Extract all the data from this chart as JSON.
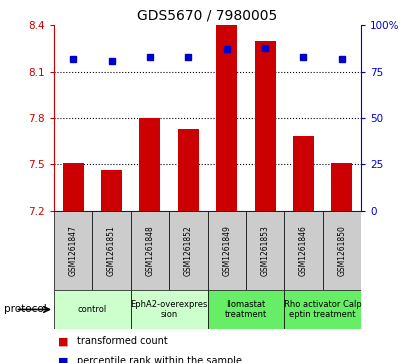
{
  "title": "GDS5670 / 7980005",
  "samples": [
    "GSM1261847",
    "GSM1261851",
    "GSM1261848",
    "GSM1261852",
    "GSM1261849",
    "GSM1261853",
    "GSM1261846",
    "GSM1261850"
  ],
  "transformed_counts": [
    7.51,
    7.46,
    7.8,
    7.73,
    8.4,
    8.3,
    7.68,
    7.51
  ],
  "percentile_ranks": [
    82,
    81,
    83,
    83,
    87,
    88,
    83,
    82
  ],
  "ylim_left": [
    7.2,
    8.4
  ],
  "ylim_right": [
    0,
    100
  ],
  "yticks_left": [
    7.2,
    7.5,
    7.8,
    8.1,
    8.4
  ],
  "yticks_right": [
    0,
    25,
    50,
    75,
    100
  ],
  "ytick_labels_right": [
    "0",
    "25",
    "50",
    "75",
    "100%"
  ],
  "protocols": [
    {
      "label": "control",
      "indices": [
        0,
        1
      ],
      "color": "#ccffcc"
    },
    {
      "label": "EphA2-overexpres\nsion",
      "indices": [
        2,
        3
      ],
      "color": "#ccffcc"
    },
    {
      "label": "Ilomastat\ntreatment",
      "indices": [
        4,
        5
      ],
      "color": "#66ee66"
    },
    {
      "label": "Rho activator Calp\neptin treatment",
      "indices": [
        6,
        7
      ],
      "color": "#66ee66"
    }
  ],
  "bar_color": "#cc0000",
  "dot_color": "#0000cc",
  "bar_width": 0.55,
  "sample_bg_color": "#cccccc",
  "bar_bottom": 7.2,
  "dotted_lines": [
    7.5,
    7.8,
    8.1
  ],
  "legend_items": [
    {
      "color": "#cc0000",
      "label": "transformed count"
    },
    {
      "color": "#0000cc",
      "label": "percentile rank within the sample"
    }
  ]
}
